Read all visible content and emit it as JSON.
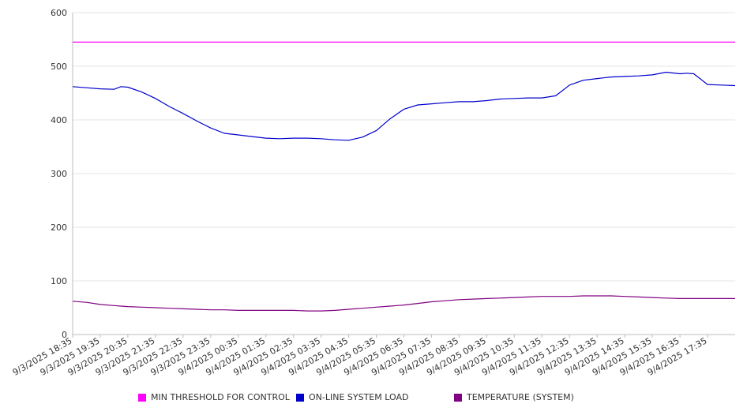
{
  "chart_data": {
    "type": "line",
    "title": "",
    "xlabel": "",
    "ylabel": "",
    "ylim": [
      0,
      600
    ],
    "yticks": [
      0,
      100,
      200,
      300,
      400,
      500,
      600
    ],
    "grid": true,
    "legend_position": "bottom",
    "x_tick_labels": [
      "9/3/2025 18:35",
      "9/3/2025 19:35",
      "9/3/2025 20:35",
      "9/3/2025 21:35",
      "9/3/2025 22:35",
      "9/3/2025 23:35",
      "9/4/2025 00:35",
      "9/4/2025 01:35",
      "9/4/2025 02:35",
      "9/4/2025 03:35",
      "9/4/2025 04:35",
      "9/4/2025 05:35",
      "9/4/2025 06:35",
      "9/4/2025 07:35",
      "9/4/2025 08:35",
      "9/4/2025 09:35",
      "9/4/2025 10:35",
      "9/4/2025 11:35",
      "9/4/2025 12:35",
      "9/4/2025 13:35",
      "9/4/2025 14:35",
      "9/4/2025 15:35",
      "9/4/2025 16:35",
      "9/4/2025 17:35"
    ],
    "x_hours": [
      0,
      0.5,
      1,
      1.5,
      1.75,
      2,
      2.5,
      3,
      3.5,
      4,
      4.5,
      5,
      5.5,
      6,
      6.5,
      7,
      7.5,
      8,
      8.5,
      9,
      9.5,
      10,
      10.5,
      11,
      11.5,
      12,
      12.5,
      13,
      13.5,
      14,
      14.5,
      15,
      15.5,
      16,
      16.5,
      17,
      17.5,
      18,
      18.5,
      19,
      19.5,
      20,
      20.5,
      21,
      21.5,
      22,
      22.25,
      22.5,
      23,
      23.5,
      24
    ],
    "series": [
      {
        "name": "MIN THRESHOLD FOR CONTROL",
        "color": "#ff00ff",
        "values": [
          545,
          545,
          545,
          545,
          545,
          545,
          545,
          545,
          545,
          545,
          545,
          545,
          545,
          545,
          545,
          545,
          545,
          545,
          545,
          545,
          545,
          545,
          545,
          545,
          545,
          545,
          545,
          545,
          545,
          545,
          545,
          545,
          545,
          545,
          545,
          545,
          545,
          545,
          545,
          545,
          545,
          545,
          545,
          545,
          545,
          545,
          545,
          545,
          545,
          545,
          545
        ]
      },
      {
        "name": "ON-LINE SYSTEM LOAD",
        "color": "#0000cc",
        "values": [
          462,
          460,
          458,
          457,
          462,
          461,
          452,
          440,
          425,
          412,
          398,
          385,
          375,
          372,
          369,
          366,
          365,
          366,
          366,
          365,
          363,
          362,
          368,
          380,
          402,
          420,
          428,
          430,
          432,
          434,
          434,
          436,
          439,
          440,
          441,
          441,
          445,
          465,
          474,
          477,
          480,
          481,
          482,
          484,
          489,
          486,
          487,
          486,
          466,
          465,
          464
        ]
      },
      {
        "name": "TEMPERATURE (SYSTEM)",
        "color": "#800080",
        "values": [
          62,
          60,
          56,
          54,
          53,
          52,
          51,
          50,
          49,
          48,
          47,
          46,
          46,
          45,
          45,
          45,
          45,
          45,
          44,
          44,
          45,
          47,
          49,
          51,
          53,
          55,
          58,
          61,
          63,
          65,
          66,
          67,
          68,
          69,
          70,
          71,
          71,
          71,
          72,
          72,
          72,
          71,
          70,
          69,
          68,
          67,
          67,
          67,
          67,
          67,
          67
        ]
      }
    ]
  }
}
